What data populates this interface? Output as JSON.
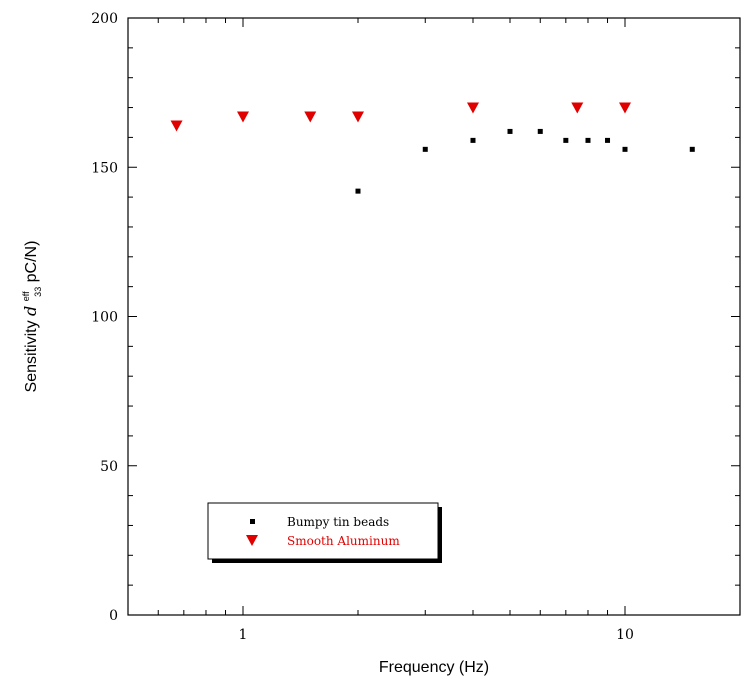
{
  "chart_data": {
    "type": "scatter",
    "xlabel": "Frequency (Hz)",
    "ylabel_parts": {
      "prefix": "Sensitivity ",
      "symbol": "d",
      "sup": "eff",
      "sub": "33",
      "suffix": " pC/N)"
    },
    "x_scale": "log",
    "xlim": [
      0.5,
      20
    ],
    "ylim": [
      0,
      200
    ],
    "x_tick_labels": [
      {
        "value": 1,
        "label": "1"
      },
      {
        "value": 10,
        "label": "10"
      }
    ],
    "y_tick_labels": [
      {
        "value": 0,
        "label": "0"
      },
      {
        "value": 50,
        "label": "50"
      },
      {
        "value": 100,
        "label": "100"
      },
      {
        "value": 150,
        "label": "150"
      },
      {
        "value": 200,
        "label": "200"
      }
    ],
    "grid": false,
    "legend_position": "lower-left",
    "series": [
      {
        "name": "Bumpy tin beads",
        "marker": "square",
        "color": "#000000",
        "points": [
          {
            "x": 2,
            "y": 142
          },
          {
            "x": 3,
            "y": 156
          },
          {
            "x": 4,
            "y": 159
          },
          {
            "x": 5,
            "y": 162
          },
          {
            "x": 6,
            "y": 162
          },
          {
            "x": 7,
            "y": 159
          },
          {
            "x": 8,
            "y": 159
          },
          {
            "x": 9,
            "y": 159
          },
          {
            "x": 10,
            "y": 156
          },
          {
            "x": 15,
            "y": 156
          }
        ]
      },
      {
        "name": "Smooth Aluminum",
        "marker": "triangle-down",
        "color": "#e00000",
        "points": [
          {
            "x": 0.67,
            "y": 164
          },
          {
            "x": 1,
            "y": 167
          },
          {
            "x": 1.5,
            "y": 167
          },
          {
            "x": 2,
            "y": 167
          },
          {
            "x": 4,
            "y": 170
          },
          {
            "x": 7.5,
            "y": 170
          },
          {
            "x": 10,
            "y": 170
          }
        ]
      }
    ]
  }
}
